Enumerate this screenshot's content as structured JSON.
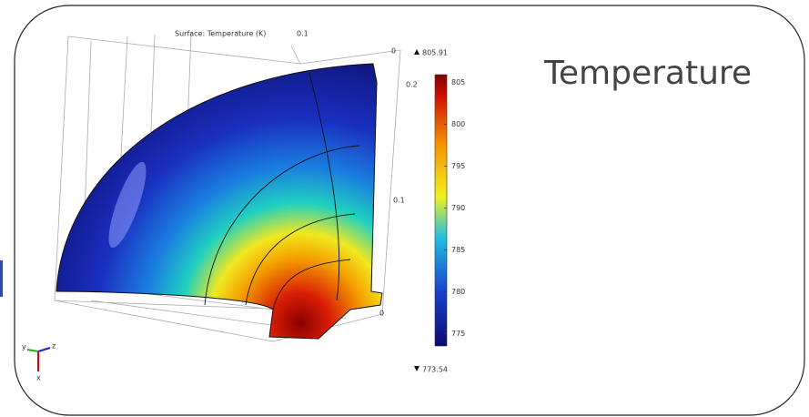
{
  "slide": {
    "title": "Temperature"
  },
  "plot": {
    "title": "Surface: Temperature (K)",
    "colorbar": {
      "max": 805.91,
      "min": 773.54,
      "ticks": [
        805,
        800,
        795,
        790,
        785,
        780,
        775
      ]
    },
    "axis_labels": [
      "0.1",
      "0",
      "0.2",
      "0.1",
      "0"
    ],
    "triad": [
      "y",
      "z",
      "x"
    ]
  }
}
